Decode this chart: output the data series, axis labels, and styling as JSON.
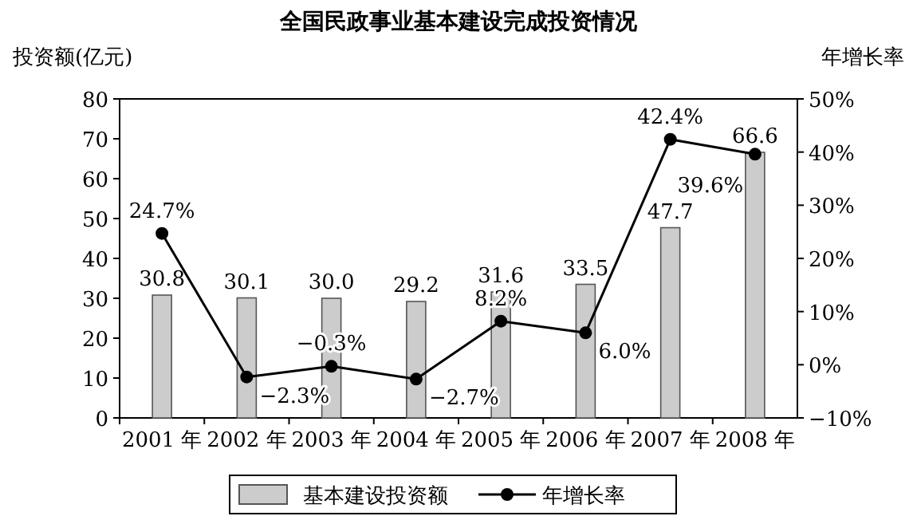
{
  "chart_data": {
    "type": "bar",
    "title": "全国民政事业基本建设完成投资情况",
    "ylabel": "投资额(亿元)",
    "y2label": "年增长率",
    "categories": [
      "2001 年",
      "2002 年",
      "2003 年",
      "2004 年",
      "2005 年",
      "2006 年",
      "2007 年",
      "2008 年"
    ],
    "series": [
      {
        "name": "基本建设投资额",
        "color": "#cccccc",
        "values": [
          30.8,
          30.1,
          30.0,
          29.2,
          31.6,
          33.5,
          47.7,
          66.6
        ],
        "value_labels": [
          "30.8",
          "30.1",
          "30.0",
          "29.2",
          "31.6",
          "33.5",
          "47.7",
          "66.6"
        ]
      },
      {
        "name": "年增长率",
        "type": "line",
        "axis": "y2",
        "color": "#000000",
        "marker": "circle",
        "line_style": "solid",
        "values": [
          24.7,
          -2.3,
          -0.3,
          -2.7,
          8.2,
          6.0,
          42.4,
          39.6
        ],
        "value_labels": [
          "24.7%",
          "−2.3%",
          "−0.3%",
          "−2.7%",
          "8.2%",
          "6.0%",
          "42.4%",
          "39.6%"
        ]
      }
    ],
    "ylim": [
      0,
      80
    ],
    "yticks": [
      0,
      10,
      20,
      30,
      40,
      50,
      60,
      70,
      80
    ],
    "y2lim": [
      -10,
      50
    ],
    "y2ticks": [
      {
        "value": -10,
        "label": "−10%"
      },
      {
        "value": 0,
        "label": "0%"
      },
      {
        "value": 10,
        "label": "10%"
      },
      {
        "value": 20,
        "label": "20%"
      },
      {
        "value": 30,
        "label": "30%"
      },
      {
        "value": 40,
        "label": "40%"
      },
      {
        "value": 50,
        "label": "50%"
      }
    ],
    "legend": "bottom",
    "grid": false
  }
}
